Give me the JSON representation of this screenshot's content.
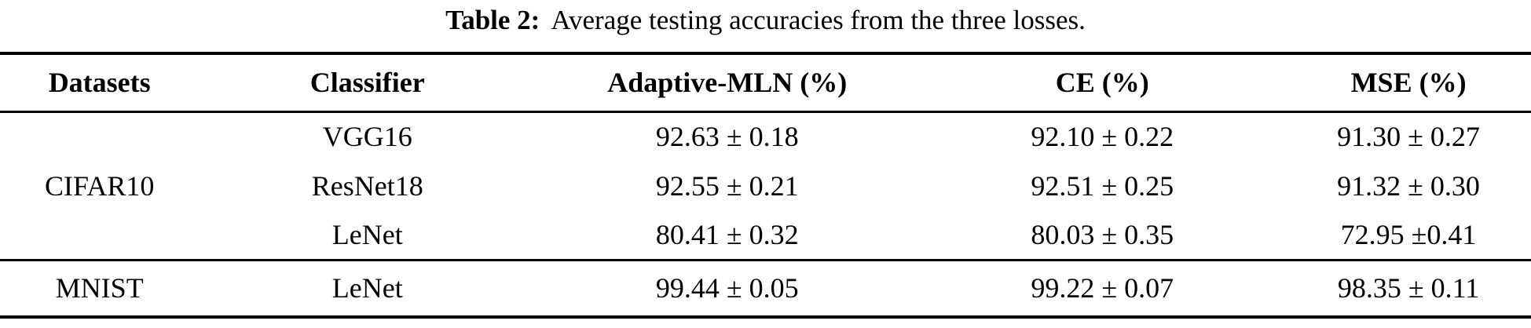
{
  "caption": {
    "label": "Table 2:",
    "text": "Average testing accuracies from the three losses."
  },
  "table": {
    "columns": [
      "Datasets",
      "Classifier",
      "Adaptive-MLN (%)",
      "CE (%)",
      "MSE (%)"
    ],
    "groups": [
      {
        "dataset": "CIFAR10",
        "rows": [
          {
            "classifier": "VGG16",
            "adaptive_mln": "92.63 ± 0.18",
            "ce": "92.10 ± 0.22",
            "mse": "91.30 ± 0.27"
          },
          {
            "classifier": "ResNet18",
            "adaptive_mln": "92.55 ± 0.21",
            "ce": "92.51 ± 0.25",
            "mse": "91.32 ± 0.30"
          },
          {
            "classifier": "LeNet",
            "adaptive_mln": "80.41 ± 0.32",
            "ce": "80.03 ± 0.35",
            "mse": "72.95 ±0.41"
          }
        ]
      },
      {
        "dataset": "MNIST",
        "rows": [
          {
            "classifier": "LeNet",
            "adaptive_mln": "99.44 ± 0.05",
            "ce": "99.22 ± 0.07",
            "mse": "98.35 ± 0.11"
          }
        ]
      }
    ]
  },
  "colors": {
    "text": "#000000",
    "background": "#ffffff",
    "rule": "#000000"
  }
}
